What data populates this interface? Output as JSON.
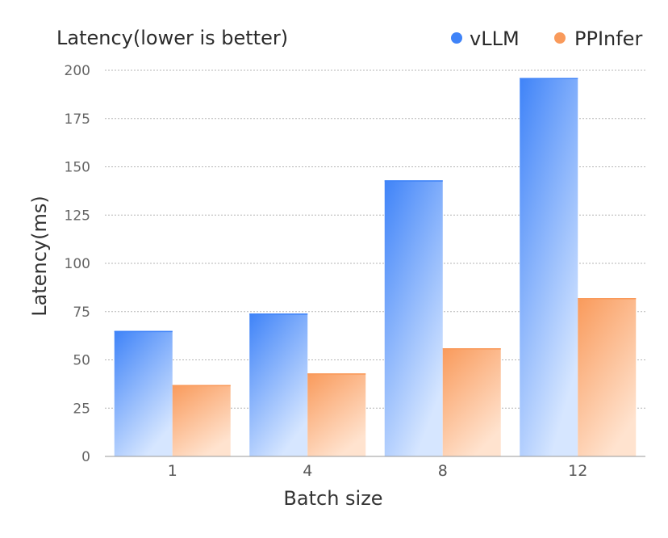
{
  "chart_data": {
    "type": "bar",
    "title": "Latency(lower is better)",
    "xlabel": "Batch size",
    "ylabel": "Latency(ms)",
    "categories": [
      "1",
      "4",
      "8",
      "12"
    ],
    "series": [
      {
        "name": "vLLM",
        "values": [
          65,
          74,
          143,
          196
        ],
        "color": "#3f83f8",
        "color_light": "#d6e6ff"
      },
      {
        "name": "PPInfer",
        "values": [
          37,
          43,
          56,
          82
        ],
        "color": "#f99a5b",
        "color_light": "#ffe3cf"
      }
    ],
    "ylim": [
      0,
      200
    ],
    "yticks": [
      0,
      25,
      50,
      75,
      100,
      125,
      150,
      175,
      200
    ],
    "grid": true,
    "legend_position": "top-right"
  }
}
